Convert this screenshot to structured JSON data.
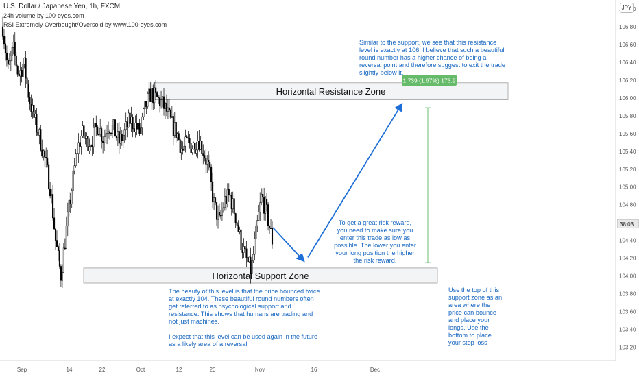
{
  "header": {
    "symbol": "U.S. Dollar / Japanese Yen, 1h, FXCM",
    "indicator1": "24h volume by 100-eyes.com",
    "indicator2": "RSI Extremely Overbought/Oversold by www.100-eyes.com"
  },
  "currency_badge": "JPY",
  "current_price_tag": "38:03",
  "colors": {
    "candle": "#000000",
    "zone_fill": "#f3f4f6",
    "zone_border": "#9e9e9e",
    "annotation": "#1565c0",
    "arrow": "#1e6fd8",
    "measure_line": "#81c784",
    "measure_label_bg": "#66bb6a"
  },
  "annotations": {
    "resistance_note": "Similar to the support, we see that this resistance level is exactly at 106. I believe that such a beautiful round number has a higher chance of being a reversal point and therefore suggest to exit the trade slightly below it.",
    "risk_note": "To get a great risk reward, you need to make sure you enter this trade as low as possible. The lower you enter your long position the higher the risk reward.",
    "support_note_1": "The beauty of this level is that the price bounced twice at exactly 104. These beautiful round numbers often get referred to as psychological support and resistance. This shows that humans are trading and not just machines.",
    "support_note_2": "I expect that this level can be used again in the future as a likely area of a reversal",
    "zone_note": "Use the top of this support zone as an area where the price can bounce and place your longs. Use the bottom to place your stop loss"
  },
  "chart_data": {
    "type": "line",
    "title": "U.S. Dollar / Japanese Yen, 1h, FXCM",
    "x_ticks": [
      "Sep",
      "14",
      "22",
      "Oct",
      "12",
      "20",
      "Nov",
      "16",
      "Dec"
    ],
    "y_ticks": [
      103.2,
      103.4,
      103.6,
      103.8,
      104.0,
      104.2,
      104.4,
      104.6,
      104.8,
      105.0,
      105.2,
      105.4,
      105.6,
      105.8,
      106.0,
      106.2,
      106.4,
      106.6,
      106.8,
      107.0
    ],
    "ylim": [
      103.05,
      107.1
    ],
    "series": [
      {
        "values": [
          106.8,
          106.3,
          106.55,
          106.25,
          106.4,
          106.0,
          105.75,
          105.55,
          105.3,
          105.0,
          104.4,
          104.0,
          104.5,
          104.95,
          105.4,
          105.6,
          105.5,
          105.55,
          105.7,
          105.55,
          105.7,
          105.65,
          105.5,
          105.6,
          105.75,
          105.7,
          105.6,
          105.9,
          106.05,
          106.0,
          105.95,
          105.85,
          105.7,
          105.6,
          105.4,
          105.5,
          105.45,
          105.55,
          105.4,
          105.2,
          104.8,
          104.6,
          104.85,
          104.9,
          104.7,
          104.4,
          104.2,
          104.05,
          104.5,
          104.9,
          104.7,
          104.4
        ]
      }
    ],
    "zones": [
      {
        "label": "Horizontal Resistance Zone",
        "low": 105.98,
        "high": 106.17
      },
      {
        "label": "Horizontal Support Zone",
        "low": 103.92,
        "high": 104.09
      }
    ],
    "measurement": {
      "label": "1.739 (1.67%) 173.9",
      "from": 104.15,
      "to": 105.89
    },
    "grid": false,
    "legend": "none"
  }
}
